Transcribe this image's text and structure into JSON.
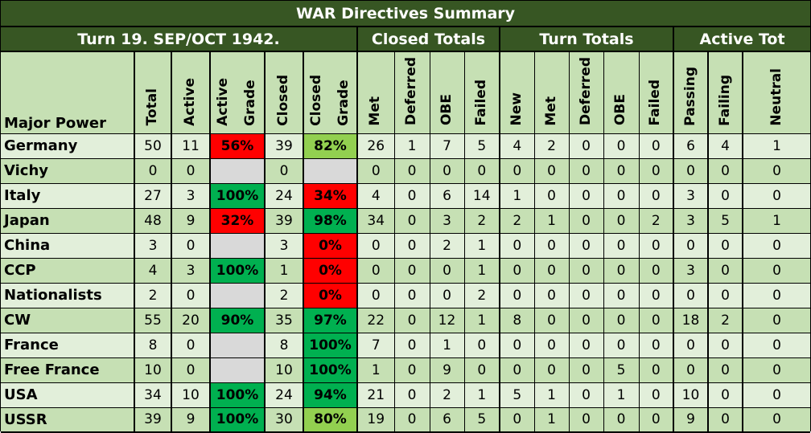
{
  "title": "WAR Directives Summary",
  "groups": {
    "turn_label": "Turn 19.  SEP/OCT 1942.",
    "closed_totals": "Closed Totals",
    "turn_totals": "Turn Totals",
    "active_tot": "Active Tot"
  },
  "columns": {
    "major_power": "Major Power",
    "total": "Total",
    "active": "Active",
    "active_grade_1": "Active",
    "active_grade_2": "Grade",
    "closed": "Closed",
    "closed_grade_1": "Closed",
    "closed_grade_2": "Grade",
    "ct_met": "Met",
    "ct_deferred": "Deferred",
    "ct_obe": "OBE",
    "ct_failed": "Failed",
    "tt_new": "New",
    "tt_met": "Met",
    "tt_deferred": "Deferred",
    "tt_obe": "OBE",
    "tt_failed": "Failed",
    "at_passing": "Passing",
    "at_failing": "Failing",
    "at_neutral": "Neutral"
  },
  "grade_colors": {
    "red": "#ff0000",
    "green": "#00b050",
    "lgreen": "#92d050",
    "none": "#d9d9d9"
  },
  "rows": [
    {
      "name": "Germany",
      "total": "50",
      "active": "11",
      "active_grade": "56%",
      "active_grade_color": "red",
      "closed": "39",
      "closed_grade": "82%",
      "closed_grade_color": "lgreen",
      "ct_met": "26",
      "ct_deferred": "1",
      "ct_obe": "7",
      "ct_failed": "5",
      "tt_new": "4",
      "tt_met": "2",
      "tt_deferred": "0",
      "tt_obe": "0",
      "tt_failed": "0",
      "at_passing": "6",
      "at_failing": "4",
      "at_neutral": "1"
    },
    {
      "name": "Vichy",
      "total": "0",
      "active": "0",
      "active_grade": "",
      "active_grade_color": "none",
      "closed": "0",
      "closed_grade": "",
      "closed_grade_color": "none",
      "ct_met": "0",
      "ct_deferred": "0",
      "ct_obe": "0",
      "ct_failed": "0",
      "tt_new": "0",
      "tt_met": "0",
      "tt_deferred": "0",
      "tt_obe": "0",
      "tt_failed": "0",
      "at_passing": "0",
      "at_failing": "0",
      "at_neutral": "0"
    },
    {
      "name": "Italy",
      "total": "27",
      "active": "3",
      "active_grade": "100%",
      "active_grade_color": "green",
      "closed": "24",
      "closed_grade": "34%",
      "closed_grade_color": "red",
      "ct_met": "4",
      "ct_deferred": "0",
      "ct_obe": "6",
      "ct_failed": "14",
      "tt_new": "1",
      "tt_met": "0",
      "tt_deferred": "0",
      "tt_obe": "0",
      "tt_failed": "0",
      "at_passing": "3",
      "at_failing": "0",
      "at_neutral": "0"
    },
    {
      "name": "Japan",
      "total": "48",
      "active": "9",
      "active_grade": "32%",
      "active_grade_color": "red",
      "closed": "39",
      "closed_grade": "98%",
      "closed_grade_color": "green",
      "ct_met": "34",
      "ct_deferred": "0",
      "ct_obe": "3",
      "ct_failed": "2",
      "tt_new": "2",
      "tt_met": "1",
      "tt_deferred": "0",
      "tt_obe": "0",
      "tt_failed": "2",
      "at_passing": "3",
      "at_failing": "5",
      "at_neutral": "1"
    },
    {
      "name": "China",
      "total": "3",
      "active": "0",
      "active_grade": "",
      "active_grade_color": "none",
      "closed": "3",
      "closed_grade": "0%",
      "closed_grade_color": "red",
      "ct_met": "0",
      "ct_deferred": "0",
      "ct_obe": "2",
      "ct_failed": "1",
      "tt_new": "0",
      "tt_met": "0",
      "tt_deferred": "0",
      "tt_obe": "0",
      "tt_failed": "0",
      "at_passing": "0",
      "at_failing": "0",
      "at_neutral": "0"
    },
    {
      "name": "CCP",
      "total": "4",
      "active": "3",
      "active_grade": "100%",
      "active_grade_color": "green",
      "closed": "1",
      "closed_grade": "0%",
      "closed_grade_color": "red",
      "ct_met": "0",
      "ct_deferred": "0",
      "ct_obe": "0",
      "ct_failed": "1",
      "tt_new": "0",
      "tt_met": "0",
      "tt_deferred": "0",
      "tt_obe": "0",
      "tt_failed": "0",
      "at_passing": "3",
      "at_failing": "0",
      "at_neutral": "0"
    },
    {
      "name": "Nationalists",
      "total": "2",
      "active": "0",
      "active_grade": "",
      "active_grade_color": "none",
      "closed": "2",
      "closed_grade": "0%",
      "closed_grade_color": "red",
      "ct_met": "0",
      "ct_deferred": "0",
      "ct_obe": "0",
      "ct_failed": "2",
      "tt_new": "0",
      "tt_met": "0",
      "tt_deferred": "0",
      "tt_obe": "0",
      "tt_failed": "0",
      "at_passing": "0",
      "at_failing": "0",
      "at_neutral": "0"
    },
    {
      "name": "CW",
      "total": "55",
      "active": "20",
      "active_grade": "90%",
      "active_grade_color": "green",
      "closed": "35",
      "closed_grade": "97%",
      "closed_grade_color": "green",
      "ct_met": "22",
      "ct_deferred": "0",
      "ct_obe": "12",
      "ct_failed": "1",
      "tt_new": "8",
      "tt_met": "0",
      "tt_deferred": "0",
      "tt_obe": "0",
      "tt_failed": "0",
      "at_passing": "18",
      "at_failing": "2",
      "at_neutral": "0"
    },
    {
      "name": "France",
      "total": "8",
      "active": "0",
      "active_grade": "",
      "active_grade_color": "none",
      "closed": "8",
      "closed_grade": "100%",
      "closed_grade_color": "green",
      "ct_met": "7",
      "ct_deferred": "0",
      "ct_obe": "1",
      "ct_failed": "0",
      "tt_new": "0",
      "tt_met": "0",
      "tt_deferred": "0",
      "tt_obe": "0",
      "tt_failed": "0",
      "at_passing": "0",
      "at_failing": "0",
      "at_neutral": "0"
    },
    {
      "name": "Free France",
      "total": "10",
      "active": "0",
      "active_grade": "",
      "active_grade_color": "none",
      "closed": "10",
      "closed_grade": "100%",
      "closed_grade_color": "green",
      "ct_met": "1",
      "ct_deferred": "0",
      "ct_obe": "9",
      "ct_failed": "0",
      "tt_new": "0",
      "tt_met": "0",
      "tt_deferred": "0",
      "tt_obe": "5",
      "tt_failed": "0",
      "at_passing": "0",
      "at_failing": "0",
      "at_neutral": "0"
    },
    {
      "name": "USA",
      "total": "34",
      "active": "10",
      "active_grade": "100%",
      "active_grade_color": "green",
      "closed": "24",
      "closed_grade": "94%",
      "closed_grade_color": "green",
      "ct_met": "21",
      "ct_deferred": "0",
      "ct_obe": "2",
      "ct_failed": "1",
      "tt_new": "5",
      "tt_met": "1",
      "tt_deferred": "0",
      "tt_obe": "1",
      "tt_failed": "0",
      "at_passing": "10",
      "at_failing": "0",
      "at_neutral": "0"
    },
    {
      "name": "USSR",
      "total": "39",
      "active": "9",
      "active_grade": "100%",
      "active_grade_color": "green",
      "closed": "30",
      "closed_grade": "80%",
      "closed_grade_color": "lgreen",
      "ct_met": "19",
      "ct_deferred": "0",
      "ct_obe": "6",
      "ct_failed": "5",
      "tt_new": "0",
      "tt_met": "1",
      "tt_deferred": "0",
      "tt_obe": "0",
      "tt_failed": "0",
      "at_passing": "9",
      "at_failing": "0",
      "at_neutral": "0"
    }
  ]
}
